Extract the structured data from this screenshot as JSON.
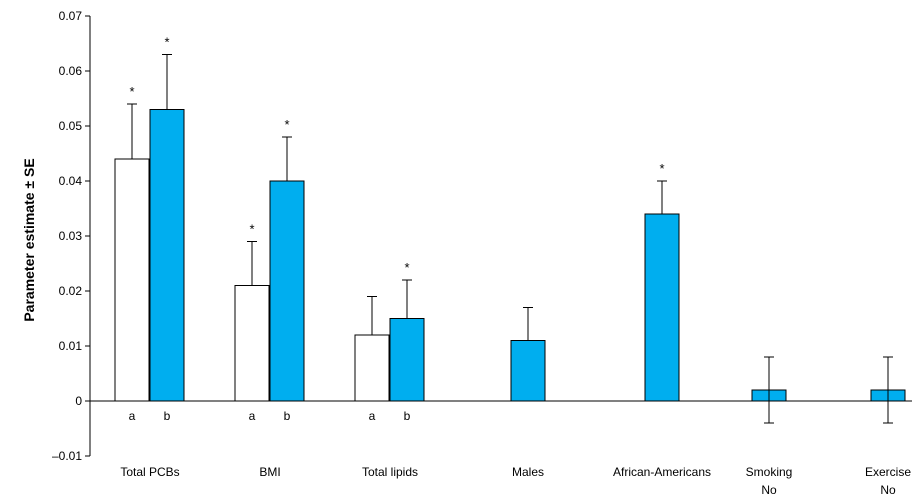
{
  "chart_data": {
    "type": "bar",
    "ylabel": "Parameter estimate ± SE",
    "ylim": [
      -0.01,
      0.07
    ],
    "yticks": [
      "–0.01",
      "0",
      "0.01",
      "0.02",
      "0.03",
      "0.04",
      "0.05",
      "0.06",
      "0.07"
    ],
    "ytick_values": [
      -0.01,
      0,
      0.01,
      0.02,
      0.03,
      0.04,
      0.05,
      0.06,
      0.07
    ],
    "categories": [
      {
        "label": "Total PCBs",
        "sublabel": ""
      },
      {
        "label": "BMI",
        "sublabel": ""
      },
      {
        "label": "Total lipids",
        "sublabel": ""
      },
      {
        "label": "Males",
        "sublabel": ""
      },
      {
        "label": "African-Americans",
        "sublabel": ""
      },
      {
        "label": "Smoking",
        "sublabel": "No"
      },
      {
        "label": "Exercise",
        "sublabel": "No"
      }
    ],
    "colors": {
      "a": "#ffffff",
      "b": "#00aeef",
      "stroke": "#000000"
    },
    "bars": [
      {
        "category": 0,
        "group": "a",
        "tag": "a",
        "value": 0.044,
        "se": 0.01,
        "sig": "*"
      },
      {
        "category": 0,
        "group": "b",
        "tag": "b",
        "value": 0.053,
        "se": 0.01,
        "sig": "*"
      },
      {
        "category": 1,
        "group": "a",
        "tag": "a",
        "value": 0.021,
        "se": 0.008,
        "sig": "*"
      },
      {
        "category": 1,
        "group": "b",
        "tag": "b",
        "value": 0.04,
        "se": 0.008,
        "sig": "*"
      },
      {
        "category": 2,
        "group": "a",
        "tag": "a",
        "value": 0.012,
        "se": 0.007,
        "sig": ""
      },
      {
        "category": 2,
        "group": "b",
        "tag": "b",
        "value": 0.015,
        "se": 0.007,
        "sig": "*"
      },
      {
        "category": 3,
        "group": "b",
        "tag": "",
        "value": 0.011,
        "se": 0.006,
        "sig": ""
      },
      {
        "category": 4,
        "group": "b",
        "tag": "",
        "value": 0.034,
        "se": 0.006,
        "sig": "*"
      },
      {
        "category": 5,
        "group": "b",
        "tag": "",
        "value": 0.002,
        "se": 0.006,
        "sig": "",
        "se_both": true
      },
      {
        "category": 6,
        "group": "b",
        "tag": "",
        "value": 0.002,
        "se": 0.006,
        "sig": "",
        "se_both": true
      }
    ]
  }
}
